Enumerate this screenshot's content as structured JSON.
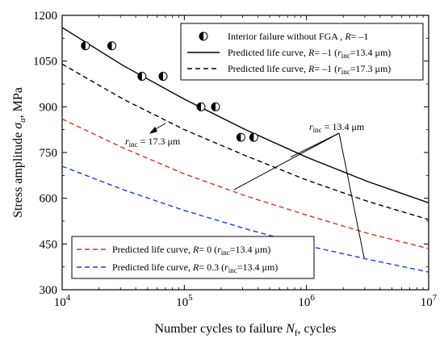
{
  "chart_data": {
    "type": "scatter",
    "x_scale": "log",
    "xlim": [
      10000,
      10000000
    ],
    "ylim": [
      300,
      1200
    ],
    "xlabel": {
      "main": "Number cycles to failure ",
      "var": "N",
      "sub": "f",
      "tail": ", cycles"
    },
    "ylabel": {
      "main": "Stress amplitude ",
      "var": "σ",
      "sub": "a",
      "tail": ", MPa"
    },
    "x_ticks": [
      {
        "value": 10000,
        "base": "10",
        "exp": "4"
      },
      {
        "value": 100000,
        "base": "10",
        "exp": "5"
      },
      {
        "value": 1000000,
        "base": "10",
        "exp": "6"
      },
      {
        "value": 10000000,
        "base": "10",
        "exp": "7"
      }
    ],
    "y_ticks": [
      "300",
      "450",
      "600",
      "750",
      "900",
      "1050",
      "1200"
    ],
    "grid": false,
    "series": [
      {
        "kind": "points",
        "legend": "Interior failure without FGA , R= –1",
        "marker": "half-filled-circle",
        "color": "#000000",
        "x": [
          15500,
          25500,
          45000,
          67000,
          137000,
          180000,
          290000,
          370000
        ],
        "y": [
          1100,
          1100,
          1000,
          1000,
          900,
          900,
          800,
          800
        ]
      },
      {
        "kind": "line",
        "legend": "Predicted life curve, R= –1 (rinc=13.4 μm)",
        "color": "#000000",
        "dash": "solid",
        "x": [
          10000,
          31623,
          100000,
          316228,
          1000000,
          3162278,
          10000000
        ],
        "y": [
          1160,
          1035,
          925,
          825,
          735,
          655,
          585
        ]
      },
      {
        "kind": "line",
        "legend": "Predicted life curve, R= –1 (rinc=17.3 μm)",
        "color": "#000000",
        "dash": "dashed",
        "x": [
          10000,
          31623,
          100000,
          316228,
          1000000,
          3162278,
          10000000
        ],
        "y": [
          1040,
          925,
          825,
          740,
          660,
          590,
          530
        ]
      },
      {
        "kind": "line",
        "legend": "Predicted life curve, R= 0 (rinc=13.4 μm)",
        "color": "#c0392b",
        "dash": "dashed",
        "x": [
          10000,
          31623,
          100000,
          316228,
          1000000,
          3162278,
          10000000
        ],
        "y": [
          860,
          765,
          680,
          608,
          545,
          485,
          435
        ]
      },
      {
        "kind": "line",
        "legend": "Predicted life curve, R= 0.3 (rinc=13.4 μm)",
        "color": "#1f3fbf",
        "dash": "dashed",
        "x": [
          10000,
          31623,
          100000,
          316228,
          1000000,
          3162278,
          10000000
        ],
        "y": [
          705,
          628,
          560,
          500,
          445,
          400,
          358
        ]
      }
    ],
    "legend_top": {
      "placement": "top-right",
      "items": [
        {
          "pre": "Interior failure without FGA , ",
          "rvar": "R",
          "post": "= –1"
        },
        {
          "pre": "Predicted life curve, ",
          "rvar": "R",
          "mid": "= –1 (",
          "r": "r",
          "rsub": "inc",
          "post": "=13.4 μm)"
        },
        {
          "pre": "Predicted life curve, ",
          "rvar": "R",
          "mid": "= –1 (",
          "r": "r",
          "rsub": "inc",
          "post": "=17.3 μm)"
        }
      ]
    },
    "legend_bottom": {
      "placement": "bottom-left",
      "items": [
        {
          "pre": "Predicted life curve, ",
          "rvar": "R",
          "mid": "= 0 (",
          "r": "r",
          "rsub": "inc",
          "post": "=13.4 μm)"
        },
        {
          "pre": "Predicted life curve, ",
          "rvar": "R",
          "mid": "= 0.3 (",
          "r": "r",
          "rsub": "inc",
          "post": "=13.4 μm)"
        }
      ]
    },
    "annotations": [
      {
        "r": "r",
        "rsub": "inc",
        "post": " = 13.4 μm",
        "target_curves": [
          0,
          2,
          3
        ]
      },
      {
        "r": "r",
        "rsub": "inc",
        "post": " = 17.3 μm",
        "target_curves": [
          1
        ]
      }
    ]
  }
}
